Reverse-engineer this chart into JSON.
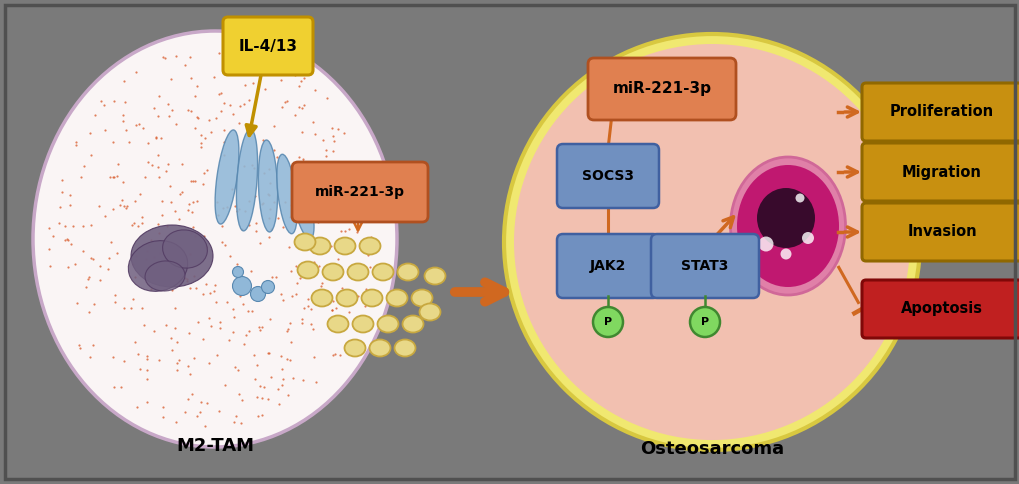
{
  "bg_color": "#7a7a7a",
  "fig_width": 10.2,
  "fig_height": 4.84,
  "m2tam_label": "M2-TAM",
  "osteo_label": "Osteosarcoma",
  "il4_label": "IL-4/13",
  "mir_label1": "miR-221-3p",
  "mir_label2": "miR-221-3p",
  "socs3_label": "SOCS3",
  "jak2_label": "JAK2",
  "stat3_label": "STAT3",
  "p_label": "P",
  "prolif_label": "Proliferation",
  "migr_label": "Migration",
  "inv_label": "Invasion",
  "apop_label": "Apoptosis",
  "cell_fill": "#faf5f5",
  "cell_border": "#c8a8c8",
  "osteo_fill": "#f2c0b0",
  "osteo_border_fill": "#f0e870",
  "osteo_border_edge": "#d8c840",
  "box_blue_fill": "#7090c0",
  "box_blue_edge": "#4060a0",
  "box_orange_fill": "#e08050",
  "box_orange_edge": "#b05020",
  "box_yellow_fill": "#c89010",
  "box_yellow_edge": "#906800",
  "box_red_fill": "#c02020",
  "box_red_edge": "#800808",
  "box_il4_fill": "#f0d030",
  "box_il4_edge": "#c09000",
  "arrow_orange": "#d06820",
  "arrow_yellow": "#c09000",
  "exosome_fill": "#e8d888",
  "exosome_border": "#c8a840",
  "nucleus_fill": "#706080",
  "nucleus_edge": "#503860",
  "p_circle_fill": "#80d860",
  "p_circle_border": "#408830",
  "inner_cell_fill": "#c01870",
  "inner_cell_border": "#e080b0",
  "inner_nuc_fill": "#200820",
  "golgi_fill": "#90b8d8",
  "golgi_edge": "#5888b0",
  "dot_color": "#d85828"
}
